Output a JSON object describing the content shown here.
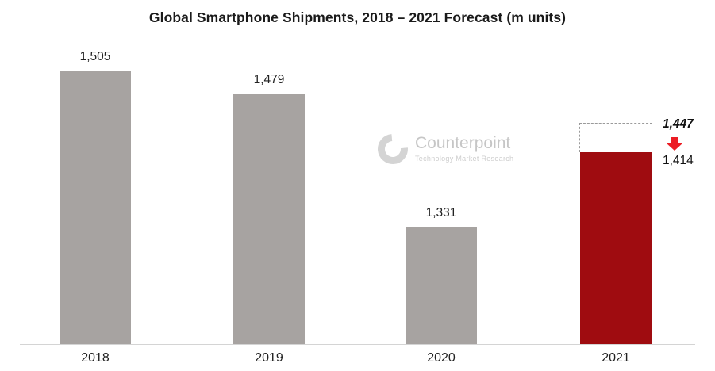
{
  "title": "Global Smartphone Shipments, 2018 – 2021 Forecast (m units)",
  "watermark": {
    "name": "Counterpoint",
    "subtitle": "Technology Market Research"
  },
  "chart_data": {
    "type": "bar",
    "title": "Global Smartphone Shipments, 2018 – 2021 Forecast (m units)",
    "categories": [
      "2018",
      "2019",
      "2020",
      "2021"
    ],
    "values": [
      1505,
      1479,
      1331,
      1414
    ],
    "labels": [
      "1,505",
      "1,479",
      "1,331",
      "1,414"
    ],
    "forecast": {
      "category": "2021",
      "previous_value": 1447,
      "previous_label": "1,447",
      "current_value": 1414,
      "current_label": "1,414"
    },
    "xlabel": "",
    "ylabel": "",
    "ylim": [
      1200,
      1520
    ],
    "grid": false,
    "legend": false,
    "bar_colors": [
      "#a7a3a1",
      "#a7a3a1",
      "#a7a3a1",
      "#9f0c10"
    ],
    "colors": {
      "bar_gray": "#a7a3a1",
      "bar_red": "#9f0c10",
      "arrow_red": "#ec1c24",
      "watermark_gray": "#cccccc",
      "dashed_border": "#9a9a9a",
      "baseline": "#d4d4d4"
    }
  }
}
